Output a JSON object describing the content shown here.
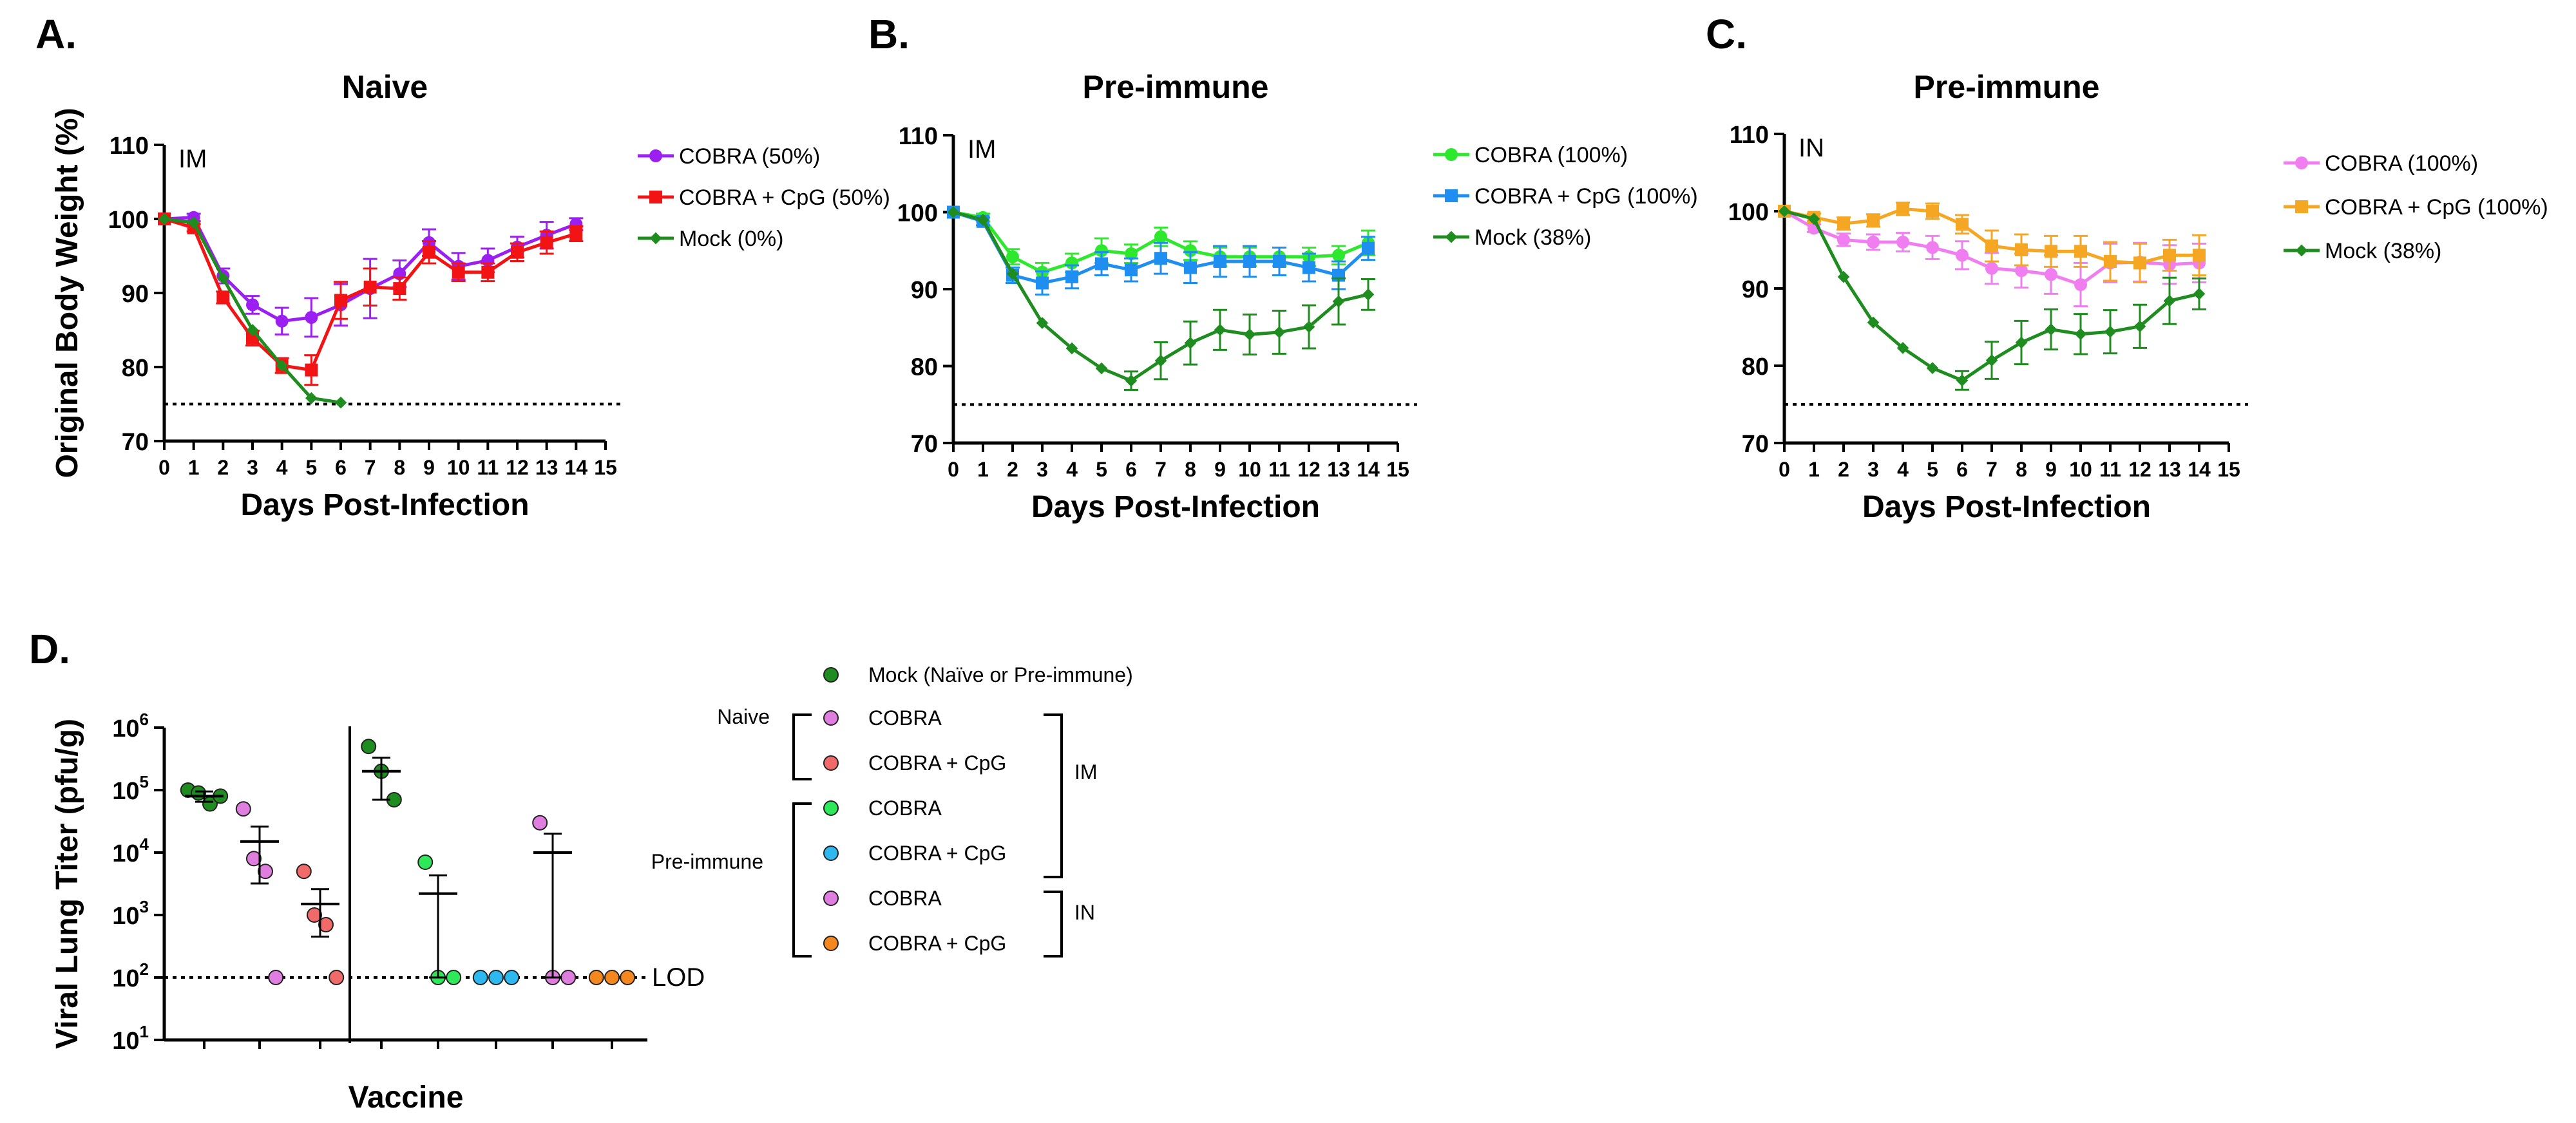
{
  "chart_data": [
    {
      "panel": "A.",
      "type": "line",
      "title": "Naive",
      "route": "IM",
      "xlabel": "Days Post-Infection",
      "ylabel": "Original Body Weight (%)",
      "xlim": [
        0,
        15
      ],
      "ylim": [
        70,
        110
      ],
      "xticks": [
        0,
        1,
        2,
        3,
        4,
        5,
        6,
        7,
        8,
        9,
        10,
        11,
        12,
        13,
        14,
        15
      ],
      "yticks": [
        70,
        80,
        90,
        100,
        110
      ],
      "threshold": 75,
      "series": [
        {
          "name": "COBRA (50%)",
          "color": "#9b1ff0",
          "marker": "circle",
          "x": [
            0,
            1,
            2,
            3,
            4,
            5,
            6,
            7,
            8,
            9,
            10,
            11,
            12,
            13,
            14
          ],
          "y": [
            100,
            100.2,
            92.3,
            88.4,
            86.2,
            86.7,
            88.4,
            90.6,
            92.6,
            96.8,
            93.6,
            94.4,
            96.2,
            97.8,
            99.3
          ],
          "err": [
            0,
            0.5,
            1,
            1.2,
            1.8,
            2.6,
            2.8,
            4,
            1.8,
            1.8,
            1.8,
            1.6,
            1.4,
            1.8,
            0.8
          ]
        },
        {
          "name": "COBRA + CpG (50%)",
          "color": "#f21414",
          "marker": "square",
          "x": [
            0,
            1,
            2,
            3,
            4,
            5,
            6,
            7,
            8,
            9,
            10,
            11,
            12,
            13,
            14
          ],
          "y": [
            100,
            98.8,
            89.4,
            83.9,
            80.2,
            79.6,
            89,
            90.8,
            90.6,
            95.5,
            92.8,
            92.8,
            95.5,
            96.8,
            98
          ],
          "err": [
            0,
            0.5,
            0.8,
            1,
            1,
            2,
            2.5,
            2.5,
            1.5,
            1.5,
            1.2,
            1.2,
            1.2,
            1.5,
            1
          ]
        },
        {
          "name": "Mock (0%)",
          "color": "#1e8c1e",
          "marker": "diamond",
          "x": [
            0,
            1,
            2,
            3,
            4,
            5,
            6
          ],
          "y": [
            100,
            99.5,
            92,
            85,
            80.2,
            75.8,
            75.2
          ],
          "err": [
            0,
            0,
            0,
            0,
            0,
            0,
            0
          ]
        }
      ]
    },
    {
      "panel": "B.",
      "type": "line",
      "title": "Pre-immune",
      "route": "IM",
      "xlabel": "Days Post-Infection",
      "ylabel": "",
      "xlim": [
        0,
        15
      ],
      "ylim": [
        70,
        110
      ],
      "xticks": [
        0,
        1,
        2,
        3,
        4,
        5,
        6,
        7,
        8,
        9,
        10,
        11,
        12,
        13,
        14,
        15
      ],
      "yticks": [
        70,
        80,
        90,
        100,
        110
      ],
      "threshold": 75,
      "series": [
        {
          "name": "COBRA (100%)",
          "color": "#2ee82e",
          "marker": "circle",
          "x": [
            0,
            1,
            2,
            3,
            4,
            5,
            6,
            7,
            8,
            9,
            10,
            11,
            12,
            13,
            14
          ],
          "y": [
            100,
            99.3,
            94.2,
            92.2,
            93.4,
            95,
            94.6,
            96.8,
            95,
            94.2,
            94.2,
            94.2,
            94.2,
            94.4,
            96
          ],
          "err": [
            0,
            0.5,
            1,
            1.2,
            1.2,
            1.6,
            1.2,
            1.2,
            1.2,
            1.2,
            1.2,
            1.2,
            1.2,
            1.2,
            1.6
          ]
        },
        {
          "name": "COBRA + CpG (100%)",
          "color": "#1e8ef0",
          "marker": "square",
          "x": [
            0,
            1,
            2,
            3,
            4,
            5,
            6,
            7,
            8,
            9,
            10,
            11,
            12,
            13,
            14
          ],
          "y": [
            100,
            98.8,
            91.8,
            90.8,
            91.6,
            93.3,
            92.5,
            94,
            92.8,
            93.6,
            93.6,
            93.6,
            92.8,
            91.8,
            95.3
          ],
          "err": [
            0,
            0.5,
            1,
            1.5,
            1.5,
            1.5,
            1.5,
            2,
            2,
            2,
            2,
            1.8,
            1.8,
            1.8,
            1.5
          ]
        },
        {
          "name": "Mock (38%)",
          "color": "#1e8c1e",
          "marker": "diamond",
          "x": [
            0,
            1,
            2,
            3,
            4,
            5,
            6,
            7,
            8,
            9,
            10,
            11,
            12,
            13,
            14
          ],
          "y": [
            100,
            99,
            92,
            85.6,
            82.3,
            79.7,
            78.1,
            80.7,
            83,
            84.7,
            84.1,
            84.4,
            85.1,
            88.4,
            89.3
          ],
          "err": [
            0,
            0,
            0,
            0,
            0,
            0,
            1.2,
            2.4,
            2.8,
            2.6,
            2.6,
            2.8,
            2.8,
            3,
            2
          ]
        }
      ]
    },
    {
      "panel": "C.",
      "type": "line",
      "title": "Pre-immune",
      "route": "IN",
      "xlabel": "Days Post-Infection",
      "ylabel": "",
      "xlim": [
        0,
        15
      ],
      "ylim": [
        70,
        110
      ],
      "xticks": [
        0,
        1,
        2,
        3,
        4,
        5,
        6,
        7,
        8,
        9,
        10,
        11,
        12,
        13,
        14,
        15
      ],
      "yticks": [
        70,
        80,
        90,
        100,
        110
      ],
      "threshold": 75,
      "series": [
        {
          "name": "COBRA (100%)",
          "color": "#f07ef0",
          "marker": "circle",
          "x": [
            0,
            1,
            2,
            3,
            4,
            5,
            6,
            7,
            8,
            9,
            10,
            11,
            12,
            13,
            14
          ],
          "y": [
            100,
            97.8,
            96.3,
            96,
            96,
            95.3,
            94.3,
            92.6,
            92.3,
            91.8,
            90.5,
            93.3,
            93.4,
            93.1,
            93.3
          ],
          "err": [
            0,
            0.5,
            0.8,
            1,
            1.2,
            1.5,
            1.8,
            2,
            2.2,
            2.5,
            2.8,
            2.5,
            2.5,
            2.5,
            2.5
          ]
        },
        {
          "name": "COBRA + CpG (100%)",
          "color": "#f5a623",
          "marker": "square",
          "x": [
            0,
            1,
            2,
            3,
            4,
            5,
            6,
            7,
            8,
            9,
            10,
            11,
            12,
            13,
            14
          ],
          "y": [
            100,
            99.2,
            98.4,
            98.8,
            100.3,
            100,
            98.3,
            95.5,
            95,
            94.8,
            94.8,
            93.5,
            93.3,
            94.3,
            94.3
          ],
          "err": [
            0,
            0.5,
            0.8,
            0.8,
            0.8,
            1,
            1.2,
            2,
            2,
            2,
            2,
            2.5,
            2.5,
            2,
            2.6
          ]
        },
        {
          "name": "Mock (38%)",
          "color": "#1e8c1e",
          "marker": "diamond",
          "x": [
            0,
            1,
            2,
            3,
            4,
            5,
            6,
            7,
            8,
            9,
            10,
            11,
            12,
            13,
            14
          ],
          "y": [
            100,
            99,
            91.5,
            85.6,
            82.3,
            79.7,
            78.1,
            80.7,
            83,
            84.7,
            84.1,
            84.4,
            85.1,
            88.4,
            89.3
          ],
          "err": [
            0,
            0,
            0,
            0,
            0,
            0,
            1.2,
            2.4,
            2.8,
            2.6,
            2.6,
            2.8,
            2.8,
            3,
            2
          ]
        }
      ]
    },
    {
      "panel": "D.",
      "type": "scatter",
      "xlabel": "Vaccine",
      "ylabel": "Viral Lung Titer (pfu/g)",
      "yscale": "log",
      "ylim": [
        10,
        1000000
      ],
      "yticks_exp": [
        1,
        2,
        3,
        4,
        5,
        6
      ],
      "tick_base": "10",
      "lod": 100,
      "lod_label": "LOD",
      "groups": [
        {
          "label": "Mock (Naïve or Pre-immune)",
          "color": "#1e8c1e",
          "values": [
            100000,
            90000,
            60000,
            80000
          ],
          "mean": 80000,
          "sem_low": 65000,
          "sem_high": 95000
        },
        {
          "label": "COBRA (Naive, IM)",
          "color": "#e07ee0",
          "values": [
            50000,
            8000,
            5000,
            100
          ],
          "mean": 15000,
          "sem_low": 3200,
          "sem_high": 26000
        },
        {
          "label": "COBRA + CpG (Naive, IM)",
          "color": "#f06a6a",
          "values": [
            5000,
            1000,
            700,
            100
          ],
          "mean": 1500,
          "sem_low": 450,
          "sem_high": 2600
        },
        {
          "label": "Mock (Pre-immune)",
          "color": "#1e8c1e",
          "values": [
            500000,
            200000,
            70000
          ],
          "mean": 200000,
          "sem_low": 70000,
          "sem_high": 330000
        },
        {
          "label": "COBRA (Pre-immune, IM)",
          "color": "#2ee85a",
          "values": [
            7000,
            100,
            100
          ],
          "mean": 2200,
          "sem_low": 100,
          "sem_high": 4300
        },
        {
          "label": "COBRA + CpG (Pre-immune, IM)",
          "color": "#2eb8f0",
          "values": [
            100,
            100,
            100
          ],
          "mean": 100,
          "sem_low": 100,
          "sem_high": 100
        },
        {
          "label": "COBRA (Pre-immune, IN)",
          "color": "#e07ee0",
          "values": [
            30000,
            100,
            100
          ],
          "mean": 10000,
          "sem_low": 100,
          "sem_high": 20000
        },
        {
          "label": "COBRA + CpG (Pre-immune, IN)",
          "color": "#f5871f",
          "values": [
            100,
            100,
            100
          ],
          "mean": 100,
          "sem_low": 100,
          "sem_high": 100
        }
      ],
      "legend": {
        "items": [
          {
            "label": "Mock (Naïve or Pre-immune)",
            "color": "#1e8c1e"
          },
          {
            "label": "COBRA",
            "color": "#e07ee0"
          },
          {
            "label": "COBRA + CpG",
            "color": "#f06a6a"
          },
          {
            "label": "COBRA",
            "color": "#2ee85a"
          },
          {
            "label": "COBRA + CpG",
            "color": "#2eb8f0"
          },
          {
            "label": "COBRA",
            "color": "#e07ee0"
          },
          {
            "label": "COBRA + CpG",
            "color": "#f5871f"
          }
        ],
        "group_naive": "Naive",
        "group_preimmune": "Pre-immune",
        "route_im": "IM",
        "route_in": "IN"
      }
    }
  ]
}
